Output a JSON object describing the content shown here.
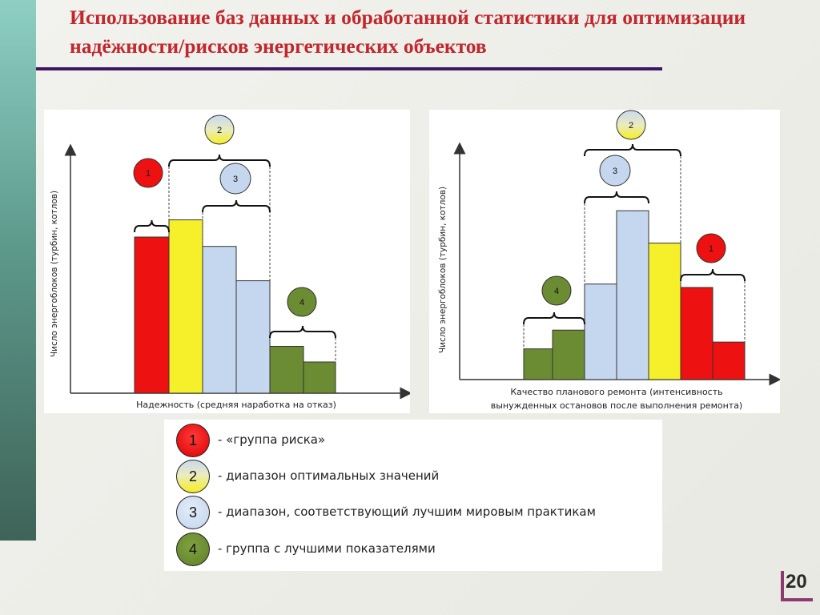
{
  "slide": {
    "title": "Использование баз данных и обработанной статистики для оптимизации надёжности/рисков энергетических объектов",
    "page_number": "20"
  },
  "legend": [
    {
      "marker": "1",
      "text": "- «группа риска»",
      "color": "#ee1111"
    },
    {
      "marker": "2",
      "text": "- диапазон оптимальных значений",
      "color": "#f5f02a"
    },
    {
      "marker": "3",
      "text": "- диапазон, соответствующий лучшим мировым практикам",
      "color": "#c5d7ef"
    },
    {
      "marker": "4",
      "text": "- группа с лучшими показателями",
      "color": "#6b8c32"
    }
  ],
  "chart_data": [
    {
      "type": "bar",
      "xlabel": "Надежность (средняя наработка на отказ)",
      "ylabel": "Число энергоблоков (турбин, котлов)",
      "categories": [
        "",
        "",
        "",
        "",
        "",
        ""
      ],
      "values": [
        10.0,
        11.1,
        9.4,
        7.2,
        3.0,
        2.0
      ],
      "colors": [
        "#ee1111",
        "#f5f02a",
        "#c5d7ef",
        "#c5d7ef",
        "#6b8c32",
        "#6b8c32"
      ],
      "group_markers": [
        "1",
        "2",
        "3",
        "4"
      ]
    },
    {
      "type": "bar",
      "xlabel": "Качество планового ремонта (интенсивность вынужденных остановов после выполнения ремонта)",
      "ylabel": "Число энергоблоков (турбин, котлов)",
      "categories": [
        "",
        "",
        "",
        "",
        "",
        "",
        ""
      ],
      "values": [
        1.8,
        2.9,
        5.6,
        9.9,
        8.0,
        5.4,
        2.2
      ],
      "colors": [
        "#6b8c32",
        "#6b8c32",
        "#c5d7ef",
        "#c5d7ef",
        "#f5f02a",
        "#ee1111",
        "#ee1111"
      ],
      "group_markers": [
        "1",
        "2",
        "3",
        "4"
      ]
    }
  ]
}
